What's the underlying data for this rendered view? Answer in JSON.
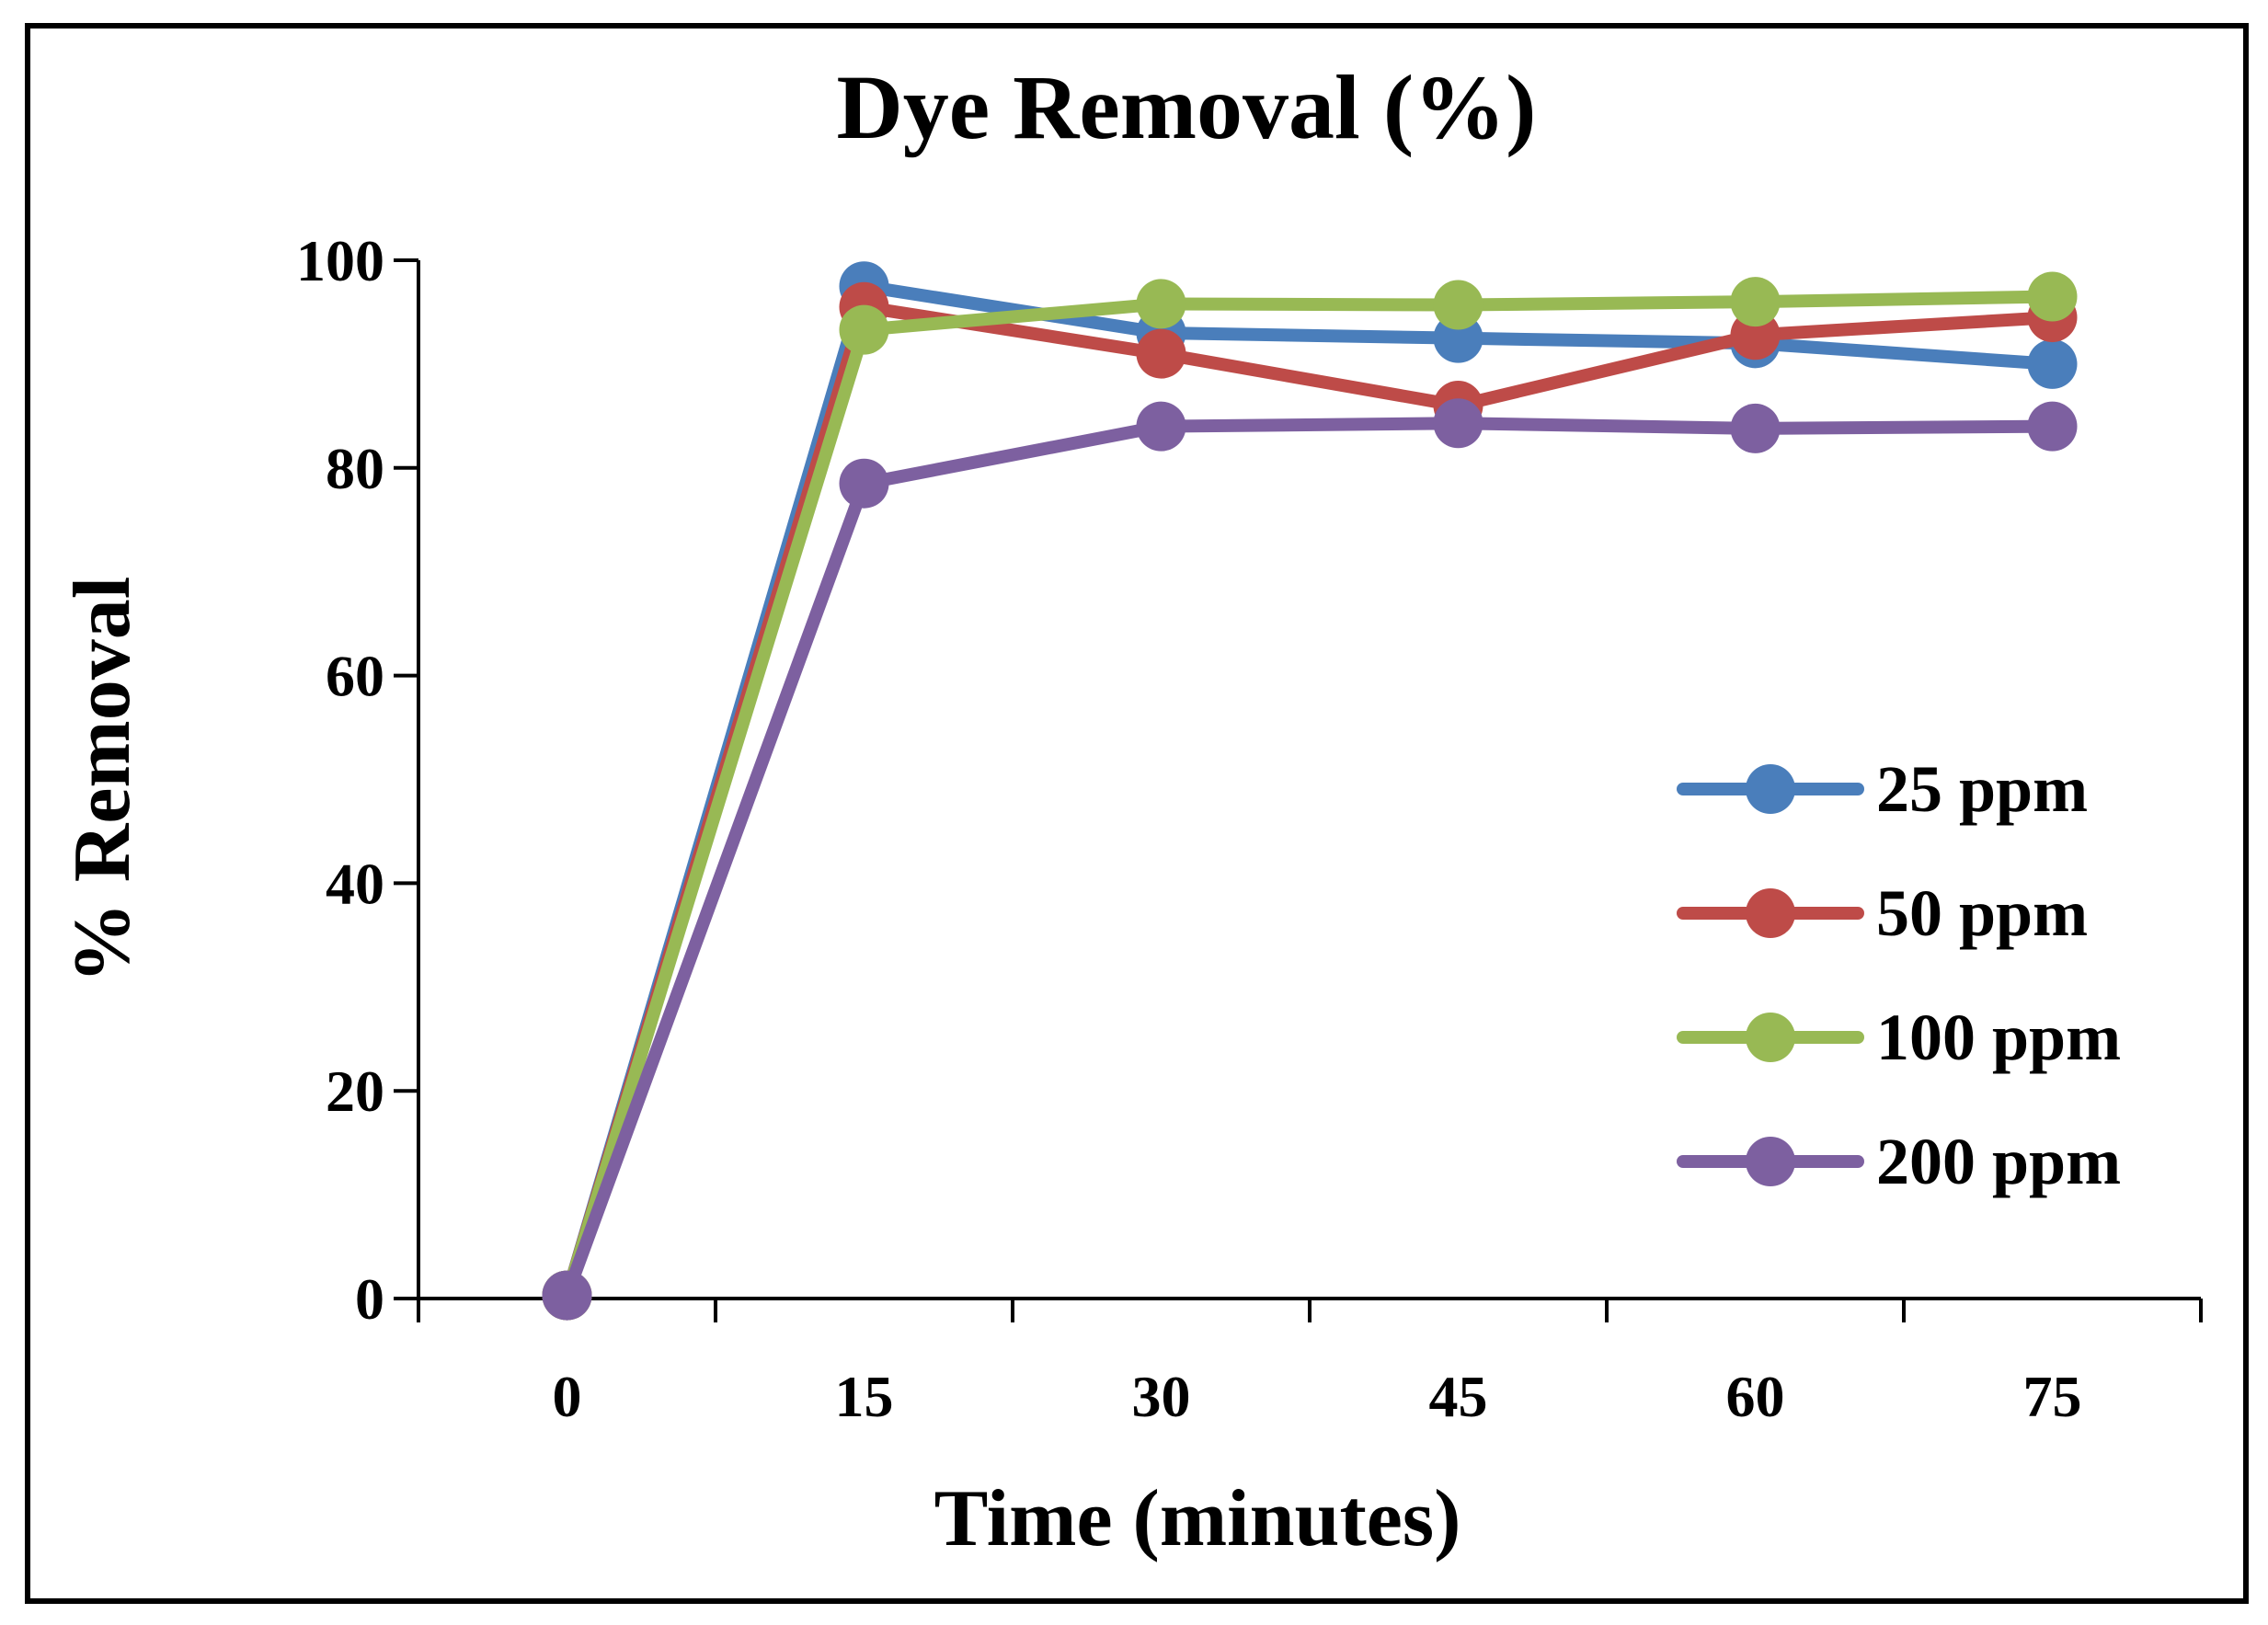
{
  "chart_data": {
    "type": "line",
    "title": "Dye Removal (%)",
    "xlabel": "Time (minutes)",
    "ylabel": "% Removal",
    "x": [
      0,
      15,
      30,
      45,
      60,
      75
    ],
    "x_tick_labels": [
      "0",
      "15",
      "30",
      "45",
      "60",
      "75"
    ],
    "y_ticks": [
      0,
      20,
      40,
      60,
      80,
      100
    ],
    "y_tick_labels": [
      "0",
      "20",
      "40",
      "60",
      "80",
      "100"
    ],
    "ylim": [
      0,
      100
    ],
    "grid": false,
    "legend_position": "right",
    "series": [
      {
        "name": "25 ppm",
        "color": "#4a7ebb",
        "values": [
          0.3,
          97.5,
          93.0,
          92.5,
          92.0,
          90.0
        ]
      },
      {
        "name": "50 ppm",
        "color": "#be4b48",
        "values": [
          0.3,
          95.5,
          91.0,
          86.0,
          92.8,
          94.5
        ]
      },
      {
        "name": "100 ppm",
        "color": "#98b954",
        "values": [
          0.3,
          93.3,
          95.8,
          95.7,
          96.0,
          96.5
        ]
      },
      {
        "name": "200 ppm",
        "color": "#7d60a0",
        "values": [
          0.3,
          78.5,
          84.0,
          84.3,
          83.8,
          84.0
        ]
      }
    ]
  }
}
